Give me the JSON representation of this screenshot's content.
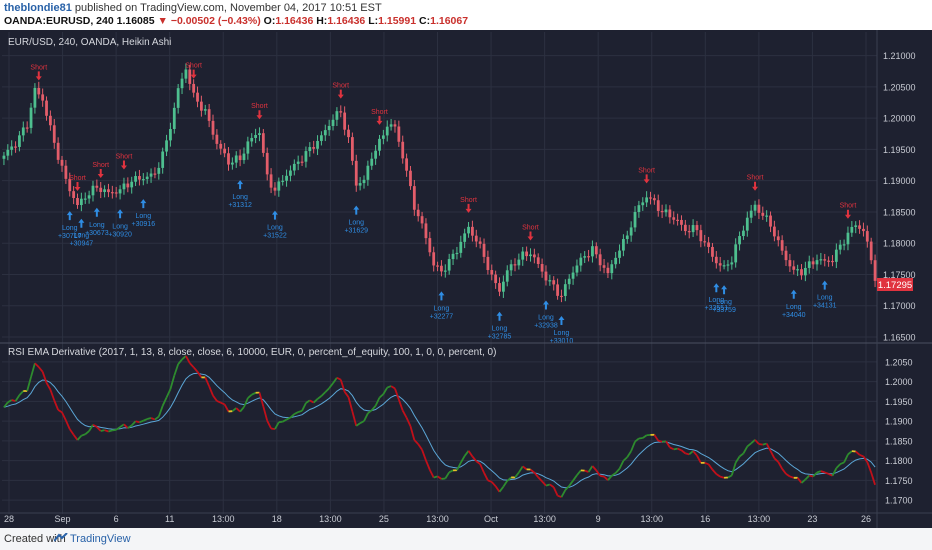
{
  "header": {
    "user": "theblondie81",
    "published_text": " published on TradingView.com, November 04, 2017 10:51 EST",
    "symbol": "OANDA:EURUSD, 240",
    "last": "1.16085",
    "change": "−0.00502 (−0.43%)",
    "o_label": "O:",
    "o_val": "1.16436",
    "h_label": "H:",
    "h_val": "1.16436",
    "l_label": "L:",
    "l_val": "1.15991",
    "c_label": "C:",
    "c_val": "1.16067"
  },
  "main_pane": {
    "title": "EUR/USD, 240, OANDA, Heikin Ashi",
    "price_tag": "1.17295"
  },
  "rsi_pane": {
    "title": "RSI EMA Derivative (2017, 1, 13, 8, close, close, 6, 10000, EUR, 0, percent_of_equity, 100, 1, 0, 0, percent, 0)"
  },
  "footer": {
    "created": "Created with",
    "brand": "TradingView"
  },
  "colors": {
    "bg": "#1e2130",
    "up": "#4ebf8f",
    "down": "#e35d6a",
    "signal_long": "#2f8de4",
    "signal_short": "#e0333f",
    "rsi_up": "#2e8b2e",
    "rsi_down": "#c0101a",
    "ema": "#5ba6d6"
  },
  "chart_data": [
    {
      "type": "candlestick",
      "title": "EUR/USD, 240, OANDA, Heikin Ashi",
      "ylim": [
        1.165,
        1.2125
      ],
      "y_ticks": [
        "1.21000",
        "1.20500",
        "1.20000",
        "1.19500",
        "1.19000",
        "1.18500",
        "1.18000",
        "1.17500",
        "1.17000",
        "1.16500"
      ],
      "x_ticks": [
        "28",
        "Sep",
        "6",
        "11",
        "13:00",
        "18",
        "13:00",
        "25",
        "13:00",
        "Oct",
        "13:00",
        "9",
        "13:00",
        "16",
        "13:00",
        "23",
        "26"
      ],
      "close_path": [
        [
          0,
          1.194
        ],
        [
          3,
          1.196
        ],
        [
          6,
          1.199
        ],
        [
          8,
          1.2045
        ],
        [
          10,
          1.203
        ],
        [
          13,
          1.196
        ],
        [
          16,
          1.19
        ],
        [
          19,
          1.186
        ],
        [
          21,
          1.1875
        ],
        [
          24,
          1.189
        ],
        [
          27,
          1.188
        ],
        [
          30,
          1.1885
        ],
        [
          33,
          1.19
        ],
        [
          36,
          1.1905
        ],
        [
          39,
          1.191
        ],
        [
          42,
          1.196
        ],
        [
          45,
          1.2045
        ],
        [
          47,
          1.208
        ],
        [
          49,
          1.2035
        ],
        [
          52,
          1.201
        ],
        [
          55,
          1.196
        ],
        [
          58,
          1.193
        ],
        [
          61,
          1.1935
        ],
        [
          63,
          1.196
        ],
        [
          66,
          1.198
        ],
        [
          68,
          1.1905
        ],
        [
          70,
          1.1885
        ],
        [
          73,
          1.191
        ],
        [
          76,
          1.193
        ],
        [
          79,
          1.195
        ],
        [
          82,
          1.197
        ],
        [
          85,
          1.2
        ],
        [
          87,
          1.201
        ],
        [
          89,
          1.1965
        ],
        [
          91,
          1.1895
        ],
        [
          93,
          1.19
        ],
        [
          95,
          1.194
        ],
        [
          97,
          1.196
        ],
        [
          99,
          1.199
        ],
        [
          101,
          1.1985
        ],
        [
          103,
          1.194
        ],
        [
          106,
          1.186
        ],
        [
          109,
          1.181
        ],
        [
          111,
          1.1765
        ],
        [
          113,
          1.1755
        ],
        [
          115,
          1.177
        ],
        [
          117,
          1.179
        ],
        [
          120,
          1.1825
        ],
        [
          122,
          1.1805
        ],
        [
          124,
          1.178
        ],
        [
          126,
          1.1745
        ],
        [
          128,
          1.1725
        ],
        [
          130,
          1.1755
        ],
        [
          132,
          1.177
        ],
        [
          134,
          1.178
        ],
        [
          136,
          1.1785
        ],
        [
          138,
          1.1765
        ],
        [
          140,
          1.1745
        ],
        [
          142,
          1.173
        ],
        [
          144,
          1.1715
        ],
        [
          146,
          1.1745
        ],
        [
          148,
          1.1765
        ],
        [
          150,
          1.178
        ],
        [
          152,
          1.179
        ],
        [
          154,
          1.177
        ],
        [
          156,
          1.175
        ],
        [
          158,
          1.178
        ],
        [
          160,
          1.18
        ],
        [
          162,
          1.183
        ],
        [
          164,
          1.186
        ],
        [
          166,
          1.1875
        ],
        [
          168,
          1.1865
        ],
        [
          170,
          1.185
        ],
        [
          172,
          1.1845
        ],
        [
          174,
          1.1835
        ],
        [
          176,
          1.182
        ],
        [
          178,
          1.1825
        ],
        [
          180,
          1.181
        ],
        [
          182,
          1.179
        ],
        [
          184,
          1.177
        ],
        [
          186,
          1.176
        ],
        [
          188,
          1.1775
        ],
        [
          190,
          1.181
        ],
        [
          192,
          1.184
        ],
        [
          194,
          1.186
        ],
        [
          196,
          1.1845
        ],
        [
          198,
          1.183
        ],
        [
          200,
          1.18
        ],
        [
          202,
          1.1775
        ],
        [
          204,
          1.1755
        ],
        [
          206,
          1.1755
        ],
        [
          208,
          1.1765
        ],
        [
          210,
          1.1775
        ],
        [
          212,
          1.177
        ],
        [
          214,
          1.1775
        ],
        [
          216,
          1.1795
        ],
        [
          218,
          1.1815
        ],
        [
          220,
          1.183
        ],
        [
          222,
          1.182
        ],
        [
          224,
          1.1775
        ],
        [
          225,
          1.1745
        ]
      ],
      "signals": [
        {
          "kind": "short",
          "label": "Short",
          "i": 9
        },
        {
          "kind": "short",
          "label": "Short",
          "i": 19
        },
        {
          "kind": "long",
          "label": "Long",
          "trade": "+30717",
          "i": 17
        },
        {
          "kind": "long",
          "label": "Long",
          "trade": "+30947",
          "i": 20
        },
        {
          "kind": "long",
          "label": "Long",
          "trade": "+30673",
          "i": 24
        },
        {
          "kind": "short",
          "label": "Short",
          "i": 25
        },
        {
          "kind": "long",
          "label": "Long",
          "trade": "+30920",
          "i": 30
        },
        {
          "kind": "short",
          "label": "Short",
          "i": 31
        },
        {
          "kind": "long",
          "label": "Long",
          "trade": "+30916",
          "i": 36
        },
        {
          "kind": "short",
          "label": "Short",
          "i": 49
        },
        {
          "kind": "short",
          "label": "Short",
          "i": 66
        },
        {
          "kind": "long",
          "label": "Long",
          "trade": "+31312",
          "i": 61
        },
        {
          "kind": "long",
          "label": "Long",
          "trade": "+31522",
          "i": 70
        },
        {
          "kind": "short",
          "label": "Short",
          "i": 87
        },
        {
          "kind": "long",
          "label": "Long",
          "trade": "+31629",
          "i": 91
        },
        {
          "kind": "short",
          "label": "Short",
          "i": 97
        },
        {
          "kind": "short",
          "label": "Short",
          "i": 120
        },
        {
          "kind": "long",
          "label": "Long",
          "trade": "+32277",
          "i": 113
        },
        {
          "kind": "short",
          "label": "Short",
          "i": 136
        },
        {
          "kind": "long",
          "label": "Long",
          "trade": "+32785",
          "i": 128
        },
        {
          "kind": "long",
          "label": "Long",
          "trade": "+32938",
          "i": 140
        },
        {
          "kind": "long",
          "label": "Long",
          "trade": "+33010",
          "i": 144
        },
        {
          "kind": "short",
          "label": "Short",
          "i": 166
        },
        {
          "kind": "long",
          "label": "Long",
          "trade": "+33551",
          "i": 184
        },
        {
          "kind": "long",
          "label": "Long",
          "trade": "+33759",
          "i": 186
        },
        {
          "kind": "short",
          "label": "Short",
          "i": 194
        },
        {
          "kind": "long",
          "label": "Long",
          "trade": "+34040",
          "i": 204
        },
        {
          "kind": "long",
          "label": "Long",
          "trade": "+34131",
          "i": 212
        },
        {
          "kind": "short",
          "label": "Short",
          "i": 218
        }
      ]
    },
    {
      "type": "line",
      "title": "RSI EMA Derivative (2017, 1, 13, 8, close, close, 6, 10000, EUR, 0, percent_of_equity, 100, 1, 0, 0, percent, 0)",
      "ylim": [
        1.168,
        1.2075
      ],
      "y_ticks": [
        "1.2050",
        "1.2000",
        "1.1950",
        "1.1900",
        "1.1850",
        "1.1800",
        "1.1750",
        "1.1700"
      ]
    }
  ]
}
